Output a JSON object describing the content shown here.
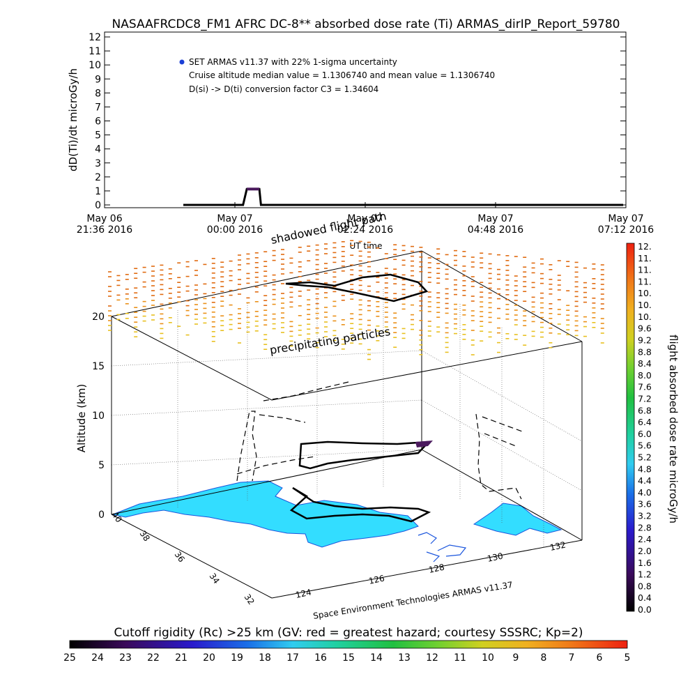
{
  "title": "NASAAFRCDC8_FM1 AFRC DC-8** absorbed dose rate (Ti) ARMAS_dirIP_Report_59780",
  "colors": {
    "series_marker": "#1a3fd6",
    "flight_line": "#000000",
    "dose_bar": "#4b1a5e",
    "land": "#33ddff",
    "coast_blue": "#1a55dd",
    "precip_hi": "#e06a10",
    "precip_lo": "#e8c020"
  },
  "chart_data": [
    {
      "type": "line",
      "title": "NASAAFRCDC8_FM1 AFRC DC-8** absorbed dose rate (Ti) ARMAS_dirIP_Report_59780",
      "ylabel": "dD(Ti)/dt microGy/h",
      "xlabel": "UT time",
      "ylim": [
        0,
        12
      ],
      "yticks": [
        "0",
        "1",
        "2",
        "3",
        "4",
        "5",
        "6",
        "7",
        "8",
        "9",
        "10",
        "11",
        "12"
      ],
      "xticks": [
        {
          "line1": "May 06",
          "line2": "21:36 2016"
        },
        {
          "line1": "May 07",
          "line2": "00:00 2016"
        },
        {
          "line1": "May 07",
          "line2": "02:24 2016"
        },
        {
          "line1": "May 07",
          "line2": "04:48 2016"
        },
        {
          "line1": "May 07",
          "line2": "07:12 2016"
        }
      ],
      "xlim_hours": [
        -2.4,
        7.2
      ],
      "annotations": {
        "legend": "SET ARMAS v11.37 with 22% 1-sigma uncertainty",
        "line2": "Cruise altitude median value = 1.1306740 and mean value = 1.1306740",
        "line3": "D(si) -> D(ti) conversion factor C3 = 1.34604"
      },
      "series": [
        {
          "name": "SET ARMAS v11.37",
          "points": [
            {
              "t": -0.95,
              "v": 0.0
            },
            {
              "t": 0.15,
              "v": 0.0
            },
            {
              "t": 0.22,
              "v": 1.13
            },
            {
              "t": 0.45,
              "v": 1.13
            },
            {
              "t": 0.48,
              "v": 0.0
            },
            {
              "t": 7.15,
              "v": 0.0
            }
          ]
        }
      ]
    },
    {
      "type": "scatter",
      "ylabel": "Altitude (km)",
      "zticks": [
        "0",
        "5",
        "10",
        "15",
        "20"
      ],
      "lat_ticks": [
        "40",
        "38",
        "36",
        "34",
        "32"
      ],
      "lon_ticks": [
        "124",
        "126",
        "128",
        "130",
        "132"
      ],
      "labels": {
        "shadowed": "shadowed flight path",
        "precip": "precipitating particles",
        "credit": "Space Environment Technologies ARMAS v11.37"
      }
    },
    {
      "type": "heatmap",
      "colorbar_label": "flight absorbed dose rate microGy/h",
      "colorbar_ticks": [
        "12.",
        "11.",
        "11.",
        "11.",
        "10.",
        "10.",
        "10.",
        "9.6",
        "9.2",
        "8.8",
        "8.4",
        "8.0",
        "7.6",
        "7.2",
        "6.8",
        "6.4",
        "6.0",
        "5.6",
        "5.2",
        "4.8",
        "4.4",
        "4.0",
        "3.6",
        "3.2",
        "2.8",
        "2.4",
        "2.0",
        "1.6",
        "1.2",
        "0.8",
        "0.4",
        "0.0"
      ]
    },
    {
      "type": "heatmap",
      "colorbar_label": "Cutoff rigidity (Rc) >25 km (GV: red = greatest hazard; courtesy SSSRC; Kp=2)",
      "colorbar_ticks": [
        "25",
        "24",
        "23",
        "22",
        "21",
        "20",
        "19",
        "18",
        "17",
        "16",
        "15",
        "14",
        "13",
        "12",
        "11",
        "10",
        "9",
        "8",
        "7",
        "6",
        "5"
      ]
    }
  ]
}
